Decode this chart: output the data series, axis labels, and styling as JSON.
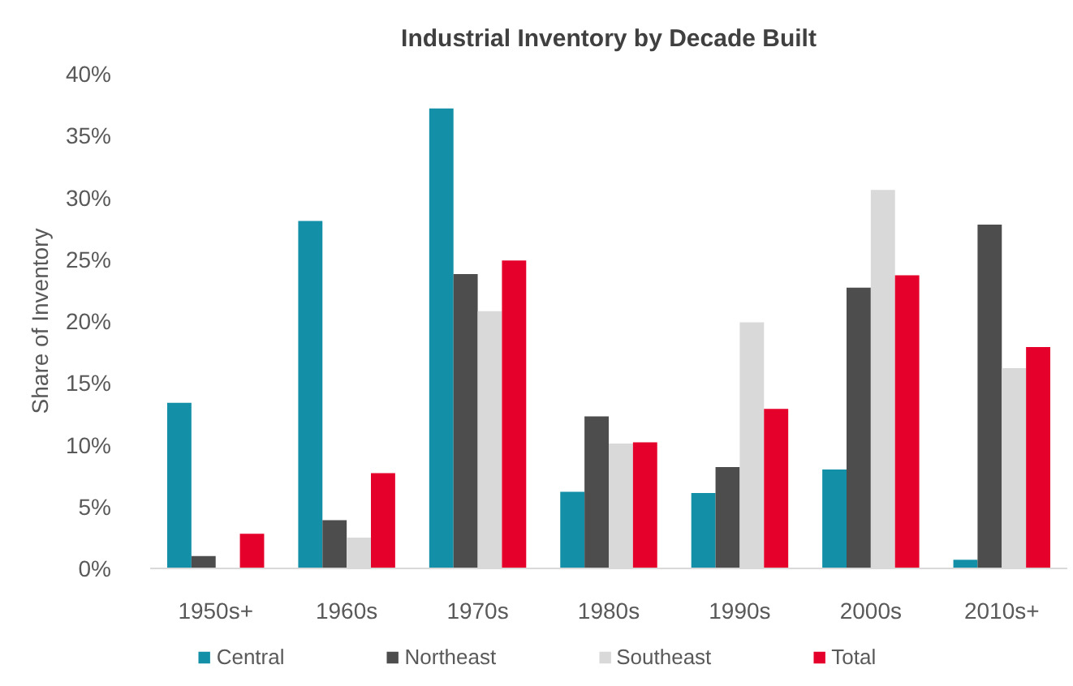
{
  "chart_data": {
    "type": "bar",
    "title": "Industrial Inventory by Decade Built",
    "ylabel": "Share of Inventory",
    "categories": [
      "1950s+",
      "1960s",
      "1970s",
      "1980s",
      "1990s",
      "2000s",
      "2010s+"
    ],
    "series": [
      {
        "name": "Central",
        "color": "#1390a8",
        "values": [
          13.4,
          28.1,
          37.2,
          6.2,
          6.1,
          8.0,
          0.7
        ]
      },
      {
        "name": "Northeast",
        "color": "#4d4d4d",
        "values": [
          1.0,
          3.9,
          23.8,
          12.3,
          8.2,
          22.7,
          27.8
        ]
      },
      {
        "name": "Southeast",
        "color": "#d9d9d9",
        "values": [
          0,
          2.5,
          20.8,
          10.1,
          19.9,
          30.6,
          16.2
        ]
      },
      {
        "name": "Total",
        "color": "#e4002b",
        "values": [
          2.8,
          7.7,
          24.9,
          10.2,
          12.9,
          23.7,
          17.9
        ]
      }
    ],
    "ylim": [
      0,
      40
    ],
    "yticks": [
      {
        "value": 0,
        "label": "0%"
      },
      {
        "value": 5,
        "label": "5%"
      },
      {
        "value": 10,
        "label": "10%"
      },
      {
        "value": 15,
        "label": "15%"
      },
      {
        "value": 20,
        "label": "20%"
      },
      {
        "value": 25,
        "label": "25%"
      },
      {
        "value": 30,
        "label": "30%"
      },
      {
        "value": 35,
        "label": "35%"
      },
      {
        "value": 40,
        "label": "40%"
      }
    ],
    "grid": false,
    "legend": "bottom"
  }
}
